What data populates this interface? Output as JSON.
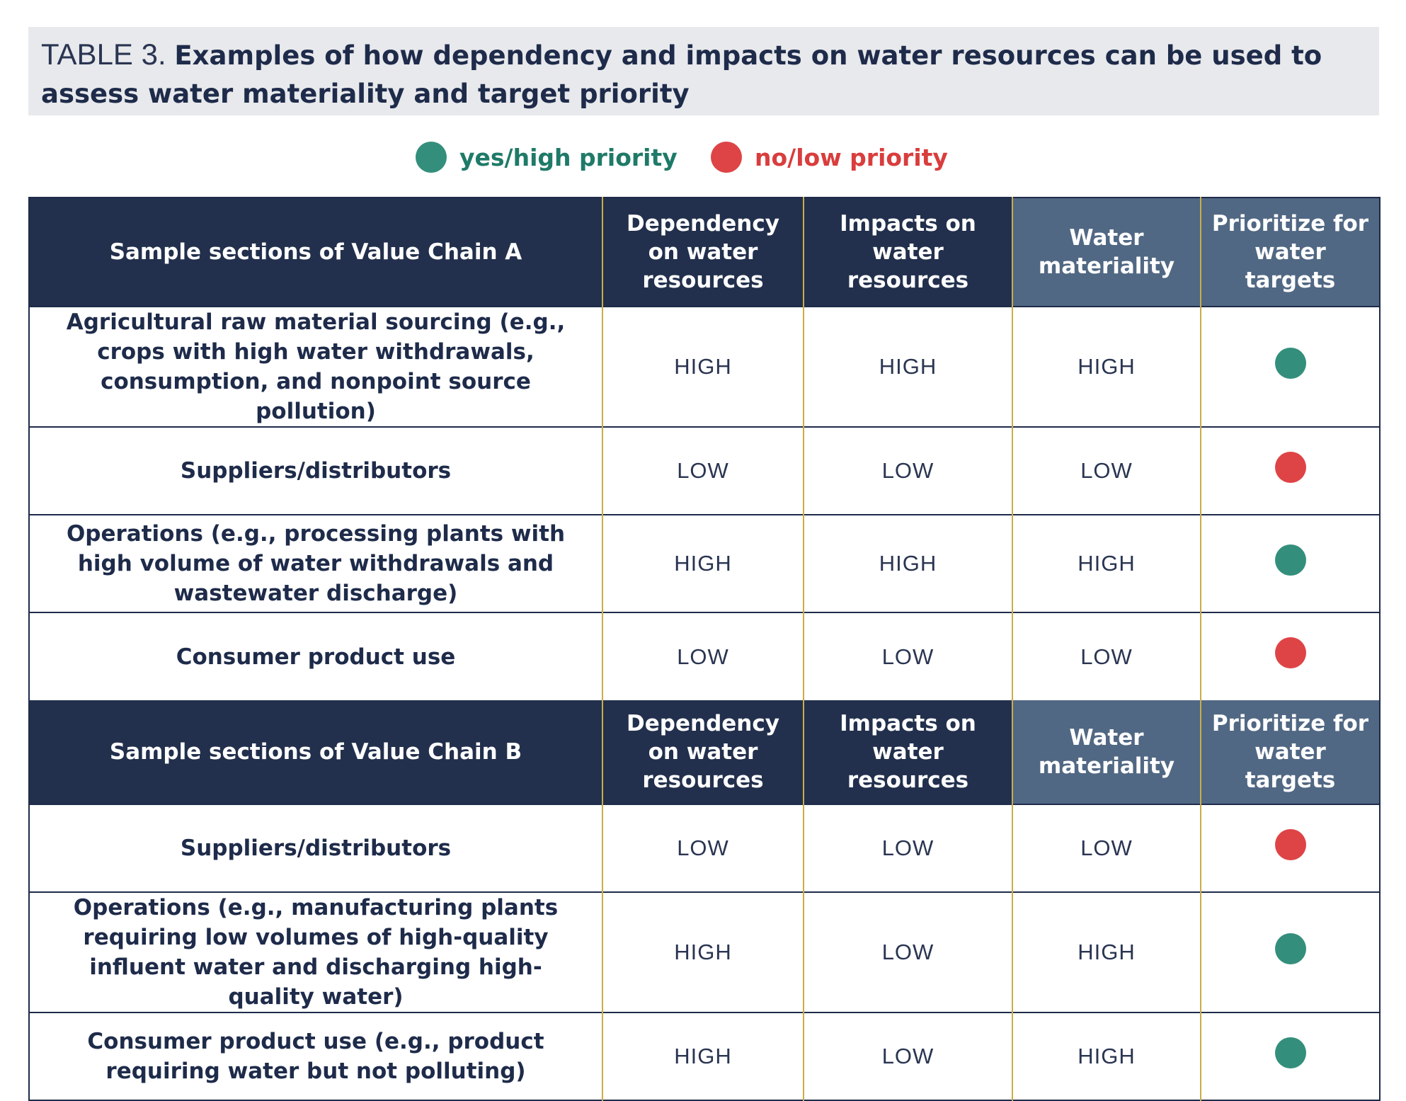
{
  "colors": {
    "yes": "#338f7b",
    "no": "#de4446"
  },
  "title": {
    "prefix": "TABLE 3.",
    "text": "Examples of how dependency and impacts on water resources can be used to assess water materiality and target priority"
  },
  "legend": {
    "yes_label": "yes/high priority",
    "no_label": "no/low priority"
  },
  "columns": {
    "dependency": "Dependency on water resources",
    "impacts": "Impacts on water resources",
    "materiality": "Water materiality",
    "prioritize": "Prioritize for water targets"
  },
  "chain_a": {
    "header": "Sample sections of Value Chain A",
    "rows": [
      {
        "section": "Agricultural raw material sourcing (e.g., crops with high water withdrawals, consumption, and nonpoint source pollution)",
        "dependency": "HIGH",
        "impacts": "HIGH",
        "materiality": "HIGH",
        "priority": "yes"
      },
      {
        "section": "Suppliers/distributors",
        "dependency": "LOW",
        "impacts": "LOW",
        "materiality": "LOW",
        "priority": "no"
      },
      {
        "section": "Operations (e.g., processing plants with high volume of water withdrawals and wastewater discharge)",
        "dependency": "HIGH",
        "impacts": "HIGH",
        "materiality": "HIGH",
        "priority": "yes"
      },
      {
        "section": "Consumer product use",
        "dependency": "LOW",
        "impacts": "LOW",
        "materiality": "LOW",
        "priority": "no"
      }
    ]
  },
  "chain_b": {
    "header": "Sample sections of Value Chain B",
    "rows": [
      {
        "section": "Suppliers/distributors",
        "dependency": "LOW",
        "impacts": "LOW",
        "materiality": "LOW",
        "priority": "no"
      },
      {
        "section": "Operations (e.g., manufacturing plants requiring low volumes of high-quality influent water and discharging high-quality water)",
        "dependency": "HIGH",
        "impacts": "LOW",
        "materiality": "HIGH",
        "priority": "yes"
      },
      {
        "section": "Consumer product use (e.g., product requiring water but not polluting)",
        "dependency": "HIGH",
        "impacts": "LOW",
        "materiality": "HIGH",
        "priority": "yes"
      }
    ]
  }
}
